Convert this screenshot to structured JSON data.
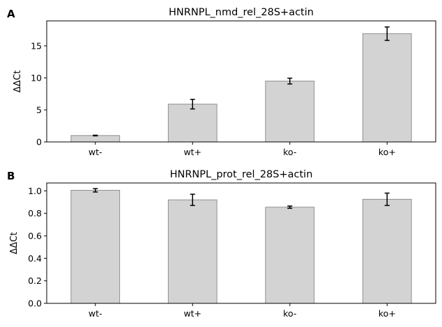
{
  "panels": [
    {
      "label": "A"
    },
    {
      "label": "B"
    }
  ],
  "chart_data": [
    {
      "type": "bar",
      "title": "HNRNPL_nmd_rel_28S+actin",
      "xlabel": "",
      "ylabel": "ΔΔCt",
      "categories": [
        "wt-",
        "wt+",
        "ko-",
        "ko+"
      ],
      "values": [
        1.0,
        5.9,
        9.5,
        16.9
      ],
      "errors": [
        0.05,
        0.75,
        0.45,
        1.05
      ],
      "ylim": [
        0,
        18.9
      ],
      "yticks": [
        0,
        5,
        10,
        15
      ],
      "grid": false,
      "bar_color": "#d3d3d3",
      "edge_color": "#8f8f8f"
    },
    {
      "type": "bar",
      "title": "HNRNPL_prot_rel_28S+actin",
      "xlabel": "",
      "ylabel": "ΔΔCt",
      "categories": [
        "wt-",
        "wt+",
        "ko-",
        "ko+"
      ],
      "values": [
        1.005,
        0.92,
        0.855,
        0.925
      ],
      "errors": [
        0.015,
        0.05,
        0.01,
        0.055
      ],
      "ylim": [
        0,
        1.07
      ],
      "yticks": [
        0.0,
        0.2,
        0.4,
        0.6,
        0.8,
        1.0
      ],
      "ytick_labels": [
        "0.0",
        "0.2",
        "0.4",
        "0.6",
        "0.8",
        "1.0"
      ],
      "grid": false,
      "bar_color": "#d3d3d3",
      "edge_color": "#8f8f8f"
    }
  ]
}
